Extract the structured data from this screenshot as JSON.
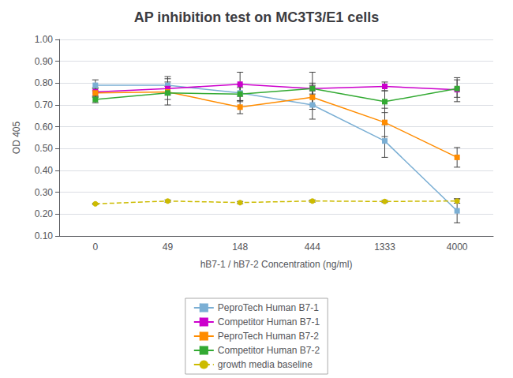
{
  "chart_data": {
    "type": "line",
    "title": "AP inhibition test on MC3T3/E1 cells",
    "x_label": "hB7-1 / hB7-2 Concentration (ng/ml)",
    "y_label": "OD 405",
    "categories": [
      "0",
      "49",
      "148",
      "444",
      "1333",
      "4000"
    ],
    "series": [
      {
        "name": "PeproTech Human B7-1",
        "color": "#7bafd4",
        "marker": "square",
        "line_style": "solid",
        "values": [
          0.79,
          0.79,
          0.755,
          0.7,
          0.535,
          0.215
        ],
        "yerr": [
          0.025,
          0.04,
          0.04,
          0.065,
          0.075,
          0.055
        ]
      },
      {
        "name": "Competitor Human B7-1",
        "color": "#cc00cc",
        "marker": "square",
        "line_style": "solid",
        "values": [
          0.76,
          0.775,
          0.795,
          0.775,
          0.785,
          0.77
        ],
        "yerr": [
          0.02,
          0.03,
          0.055,
          0.075,
          0.02,
          0.055
        ]
      },
      {
        "name": "PeproTech Human B7-2",
        "color": "#ff8c00",
        "marker": "square",
        "line_style": "solid",
        "values": [
          0.755,
          0.76,
          0.69,
          0.735,
          0.62,
          0.46
        ],
        "yerr": [
          0.02,
          0.06,
          0.03,
          0.055,
          0.065,
          0.045
        ]
      },
      {
        "name": "Competitor Human B7-2",
        "color": "#33aa33",
        "marker": "square",
        "line_style": "solid",
        "values": [
          0.725,
          0.755,
          0.75,
          0.775,
          0.715,
          0.775
        ],
        "yerr": [
          0.015,
          0.03,
          0.03,
          0.025,
          0.05,
          0.04
        ]
      },
      {
        "name": "growth media baseline",
        "color": "#ccbb00",
        "marker": "circle",
        "line_style": "dashed",
        "values": [
          0.247,
          0.26,
          0.253,
          0.26,
          0.258,
          0.26
        ],
        "yerr": [
          0.003,
          0.005,
          0.005,
          0.005,
          0.005,
          0.01
        ]
      }
    ],
    "ylim": [
      0.1,
      1.0
    ],
    "yticks": [
      {
        "value": 0.1,
        "label": "0.10"
      },
      {
        "value": 0.2,
        "label": "0.20"
      },
      {
        "value": 0.3,
        "label": "0.30"
      },
      {
        "value": 0.4,
        "label": "0.40"
      },
      {
        "value": 0.5,
        "label": "0.50"
      },
      {
        "value": 0.6,
        "label": "0.60"
      },
      {
        "value": 0.7,
        "label": "0.70"
      },
      {
        "value": 0.8,
        "label": "0.80"
      },
      {
        "value": 0.9,
        "label": "0.90"
      },
      {
        "value": 1.0,
        "label": "1.00"
      }
    ],
    "grid": true,
    "legend": "bottom"
  }
}
